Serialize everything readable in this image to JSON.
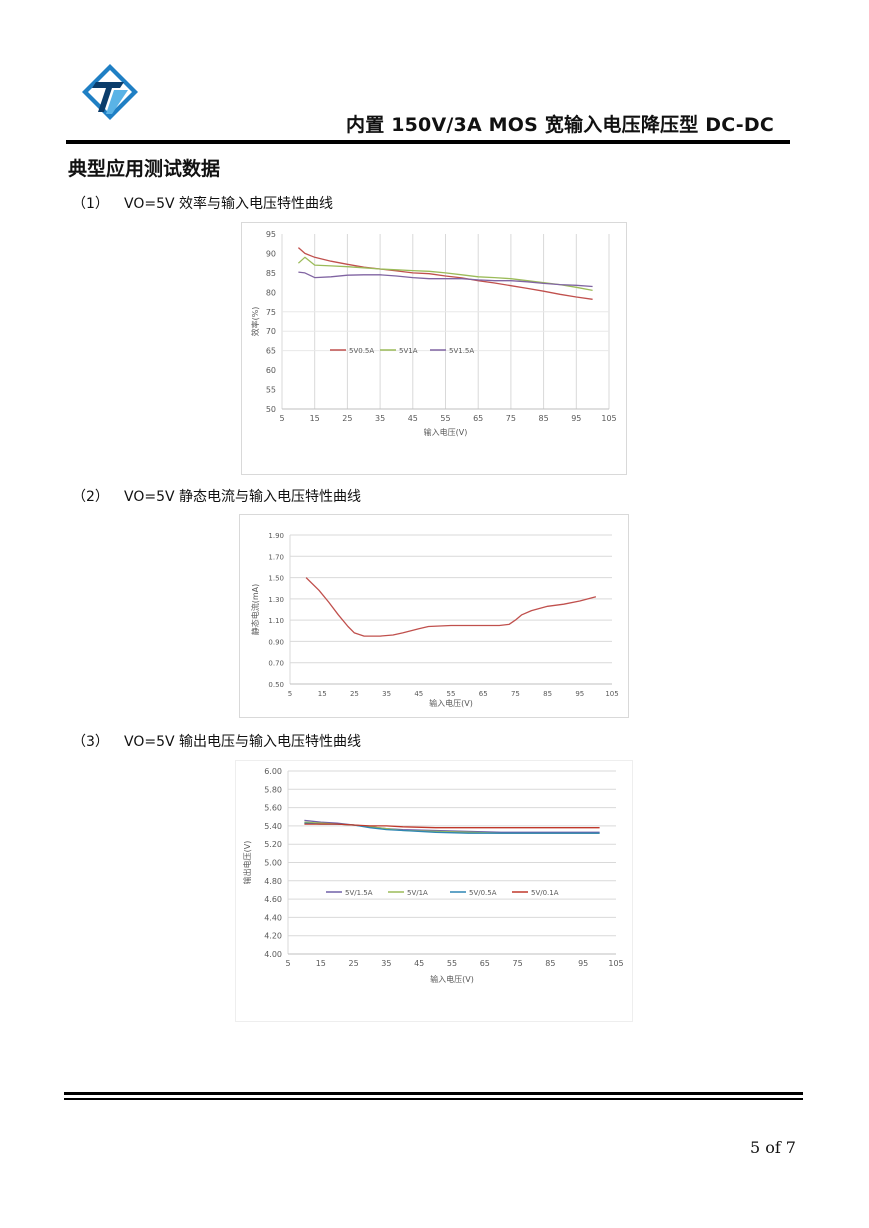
{
  "header": {
    "title": "内置 150V/3A MOS 宽输入电压降压型 DC-DC",
    "logo_icon": "company-logo-icon",
    "logo_colors": [
      "#1f7fc4",
      "#5ab3e6",
      "#0b3d6b"
    ]
  },
  "section": {
    "heading": "典型应用测试数据"
  },
  "captions": [
    {
      "num": "（1）",
      "text": "VO=5V 效率与输入电压特性曲线"
    },
    {
      "num": "（2）",
      "text": "VO=5V 静态电流与输入电压特性曲线"
    },
    {
      "num": "（3）",
      "text": "VO=5V 输出电压与输入电压特性曲线"
    }
  ],
  "chart_data": [
    {
      "type": "line",
      "title": "",
      "xlabel": "输入电压(V)",
      "ylabel": "效率(%)",
      "xlim": [
        5,
        105
      ],
      "ylim": [
        50,
        95
      ],
      "xticks": [
        5,
        15,
        25,
        35,
        45,
        55,
        65,
        75,
        85,
        95,
        105
      ],
      "yticks": [
        50,
        55,
        60,
        65,
        70,
        75,
        80,
        85,
        90,
        95
      ],
      "grid": "vertical",
      "legend": "middle-left",
      "series": [
        {
          "name": "5V0.5A",
          "color": "#c0504d",
          "x": [
            10,
            12,
            15,
            20,
            25,
            30,
            35,
            40,
            45,
            50,
            55,
            60,
            65,
            70,
            75,
            80,
            85,
            90,
            95,
            100
          ],
          "y": [
            91.5,
            90,
            89,
            88,
            87.2,
            86.5,
            86,
            85.5,
            85,
            84.8,
            84.2,
            83.7,
            83,
            82.4,
            81.7,
            81,
            80.3,
            79.5,
            78.8,
            78.2
          ]
        },
        {
          "name": "5V1A",
          "color": "#9bbb59",
          "x": [
            10,
            12,
            15,
            20,
            25,
            30,
            35,
            40,
            45,
            50,
            55,
            60,
            65,
            70,
            75,
            80,
            85,
            90,
            95,
            100
          ],
          "y": [
            87.5,
            89,
            87,
            86.8,
            86.6,
            86.3,
            86,
            85.8,
            85.6,
            85.4,
            85,
            84.5,
            84,
            83.8,
            83.5,
            83,
            82.5,
            82,
            81.3,
            80.5
          ]
        },
        {
          "name": "5V1.5A",
          "color": "#8064a2",
          "x": [
            10,
            12,
            15,
            20,
            25,
            30,
            35,
            40,
            45,
            50,
            55,
            60,
            65,
            70,
            75,
            80,
            85,
            90,
            95,
            100
          ],
          "y": [
            85.2,
            85,
            83.8,
            84,
            84.4,
            84.5,
            84.5,
            84.2,
            83.8,
            83.5,
            83.5,
            83.5,
            83.2,
            83,
            83,
            82.7,
            82.3,
            82,
            81.8,
            81.5
          ]
        }
      ]
    },
    {
      "type": "line",
      "title": "",
      "xlabel": "输入电压(V)",
      "ylabel": "静态电流(mA)",
      "xlim": [
        5,
        105
      ],
      "ylim": [
        0.5,
        1.9
      ],
      "xticks": [
        5,
        15,
        25,
        35,
        45,
        55,
        65,
        75,
        85,
        95,
        105
      ],
      "yticks": [
        "0.50",
        "0.70",
        "0.90",
        "1.10",
        "1.30",
        "1.50",
        "1.70",
        "1.90"
      ],
      "grid": "horizontal",
      "series": [
        {
          "name": "",
          "color": "#c0504d",
          "x": [
            10,
            14,
            17,
            20,
            23,
            25,
            28,
            30,
            33,
            37,
            40,
            45,
            48,
            55,
            60,
            65,
            70,
            73,
            75,
            77,
            80,
            85,
            90,
            95,
            100
          ],
          "y": [
            1.5,
            1.38,
            1.27,
            1.15,
            1.04,
            0.98,
            0.95,
            0.95,
            0.95,
            0.96,
            0.98,
            1.02,
            1.04,
            1.05,
            1.05,
            1.05,
            1.05,
            1.06,
            1.1,
            1.15,
            1.19,
            1.23,
            1.25,
            1.28,
            1.32
          ]
        }
      ]
    },
    {
      "type": "line",
      "title": "",
      "xlabel": "输入电压(V)",
      "ylabel": "输出电压(V)",
      "xlim": [
        5,
        105
      ],
      "ylim": [
        4.0,
        6.0
      ],
      "xticks": [
        5,
        15,
        25,
        35,
        45,
        55,
        65,
        75,
        85,
        95,
        105
      ],
      "yticks": [
        "4.00",
        "4.20",
        "4.40",
        "4.60",
        "4.80",
        "5.00",
        "5.20",
        "5.40",
        "5.60",
        "5.80",
        "6.00"
      ],
      "grid": "horizontal",
      "legend": "middle",
      "series": [
        {
          "name": "5V/1.5A",
          "color": "#7060a8",
          "x": [
            10,
            15,
            20,
            25,
            30,
            35,
            40,
            50,
            60,
            70,
            80,
            90,
            100
          ],
          "y": [
            5.46,
            5.44,
            5.43,
            5.41,
            5.39,
            5.37,
            5.36,
            5.35,
            5.34,
            5.33,
            5.33,
            5.33,
            5.33
          ]
        },
        {
          "name": "5V/1A",
          "color": "#9bbb59",
          "x": [
            10,
            15,
            20,
            25,
            30,
            35,
            40,
            50,
            60,
            70,
            80,
            90,
            100
          ],
          "y": [
            5.44,
            5.43,
            5.42,
            5.41,
            5.39,
            5.37,
            5.35,
            5.34,
            5.33,
            5.32,
            5.32,
            5.32,
            5.32
          ]
        },
        {
          "name": "5V/0.5A",
          "color": "#2e86b4",
          "x": [
            10,
            15,
            20,
            25,
            30,
            35,
            40,
            50,
            60,
            70,
            80,
            90,
            100
          ],
          "y": [
            5.43,
            5.42,
            5.42,
            5.41,
            5.38,
            5.36,
            5.35,
            5.33,
            5.32,
            5.32,
            5.32,
            5.32,
            5.32
          ]
        },
        {
          "name": "5V/0.1A",
          "color": "#c0392b",
          "x": [
            10,
            15,
            20,
            25,
            30,
            35,
            40,
            50,
            60,
            70,
            80,
            90,
            100
          ],
          "y": [
            5.42,
            5.42,
            5.42,
            5.41,
            5.4,
            5.4,
            5.39,
            5.38,
            5.38,
            5.38,
            5.38,
            5.38,
            5.38
          ]
        }
      ]
    }
  ],
  "footer": {
    "page_current": "5",
    "page_of": "of",
    "page_total": "7"
  }
}
